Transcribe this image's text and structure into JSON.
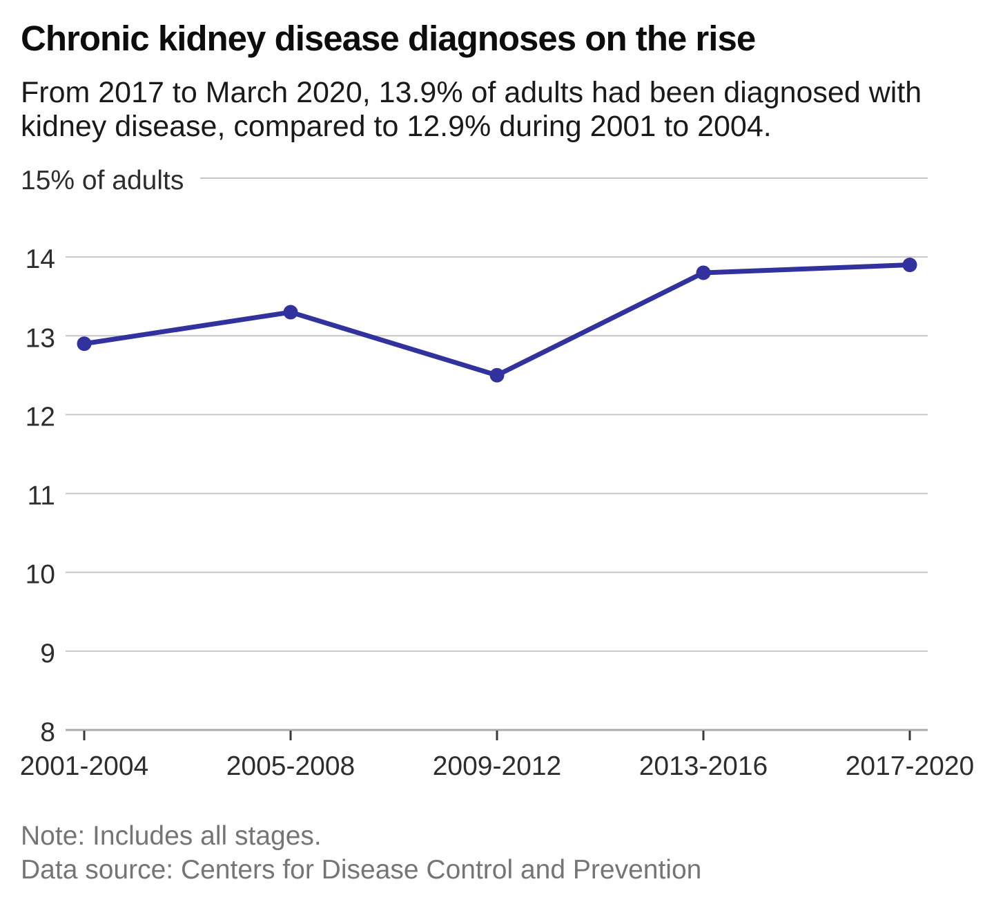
{
  "header": {
    "title": "Chronic kidney disease diagnoses on the rise",
    "subtitle": "From 2017 to March 2020, 13.9% of adults had been diagnosed with kidney disease, compared to 12.9% during 2001 to 2004."
  },
  "footer": {
    "note": "Note: Includes all stages.",
    "source": "Data source: Centers for Disease Control and Prevention"
  },
  "chart_data": {
    "type": "line",
    "title": "Chronic kidney disease diagnoses on the rise",
    "categories": [
      "2001-2004",
      "2005-2008",
      "2009-2012",
      "2013-2016",
      "2017-2020"
    ],
    "values": [
      12.9,
      13.3,
      12.5,
      13.8,
      13.9
    ],
    "xlabel": "",
    "ylabel": "% of adults",
    "ylim": [
      8,
      15
    ],
    "yticks": [
      8,
      9,
      10,
      11,
      12,
      13,
      14,
      15
    ],
    "ytick_labels": [
      "8",
      "9",
      "10",
      "11",
      "12",
      "13",
      "14",
      "15% of adults"
    ],
    "grid": true,
    "legend": "none",
    "colors": {
      "line": "#32329E",
      "grid": "#C6C6C6",
      "axis": "#ABABAB",
      "tick_mark": "#3A3A3A",
      "tick_text": "#2D2D2D"
    }
  }
}
